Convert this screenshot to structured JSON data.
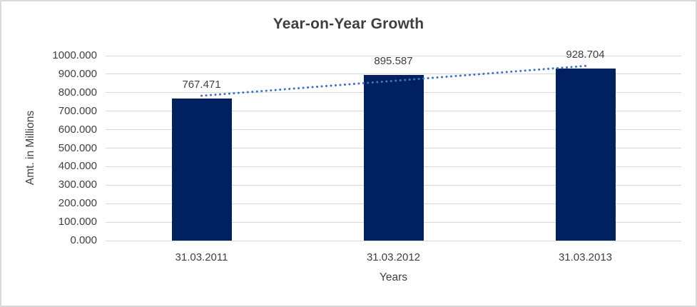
{
  "window": {
    "background": "#ffffff",
    "border_color": "#d9d9d9"
  },
  "chart_data": {
    "type": "bar",
    "title": "Year-on-Year Growth",
    "categories": [
      "31.03.2011",
      "31.03.2012",
      "31.03.2013"
    ],
    "values": [
      767.471,
      895.587,
      928.704
    ],
    "data_labels": [
      "767.471",
      "895.587",
      "928.704"
    ],
    "xlabel": "Years",
    "ylabel": "Amt. in Millions",
    "ylim": [
      0,
      1000
    ],
    "ytick_step": 100,
    "ytick_labels": [
      "0.000",
      "100.000",
      "200.000",
      "300.000",
      "400.000",
      "500.000",
      "600.000",
      "700.000",
      "800.000",
      "900.000",
      "1000.000"
    ],
    "grid": true,
    "legend_position": "none",
    "bar_color": "#002060",
    "gridline_color": "#d9d9d9",
    "text_color": "#404040",
    "trendline": {
      "type": "linear",
      "style": "dotted",
      "color": "#3f74c0"
    }
  }
}
